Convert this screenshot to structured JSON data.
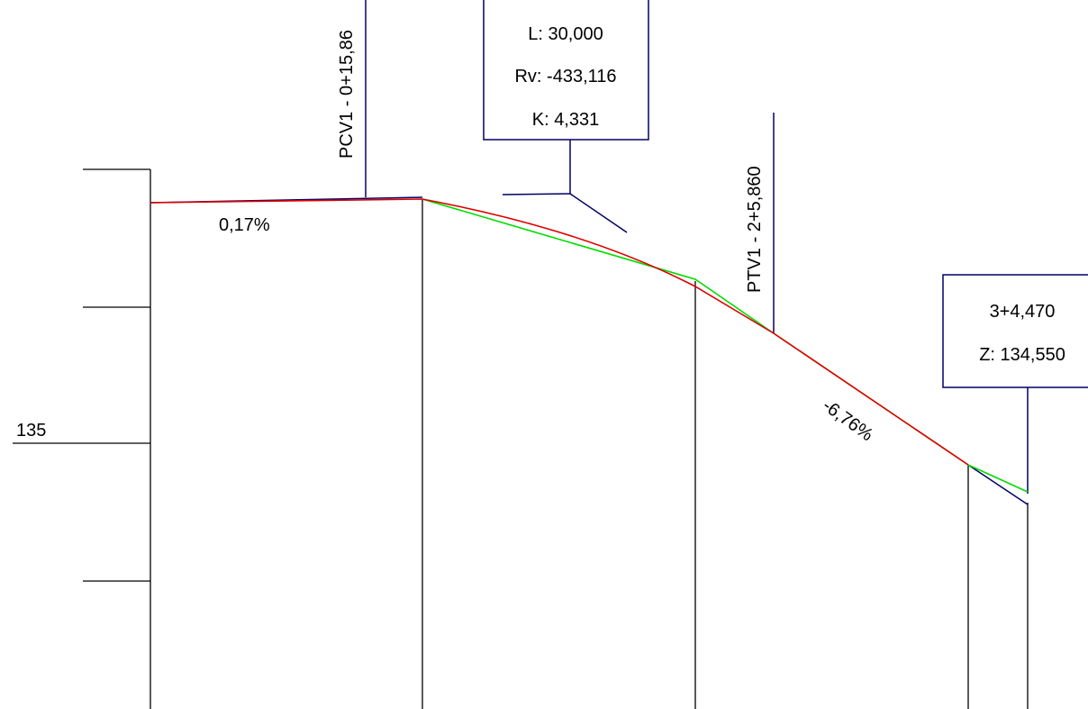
{
  "axis": {
    "elevation_label": "135"
  },
  "grades": {
    "start": "0,17%",
    "end": "-6,76%"
  },
  "stations": {
    "pcv": "PCV1 - 0+15,86",
    "ptv": "PTV1 - 2+5,860"
  },
  "curve_box": {
    "length": "L: 30,000",
    "radius": "Rv: -433,116",
    "k": "K: 4,331"
  },
  "point_box": {
    "station": "3+4,470",
    "elevation": "Z: 134,550"
  },
  "colors": {
    "red_profile": "#e00000",
    "green_tangent": "#00dd00",
    "blue_line": "#000080",
    "black_line": "#000000"
  }
}
